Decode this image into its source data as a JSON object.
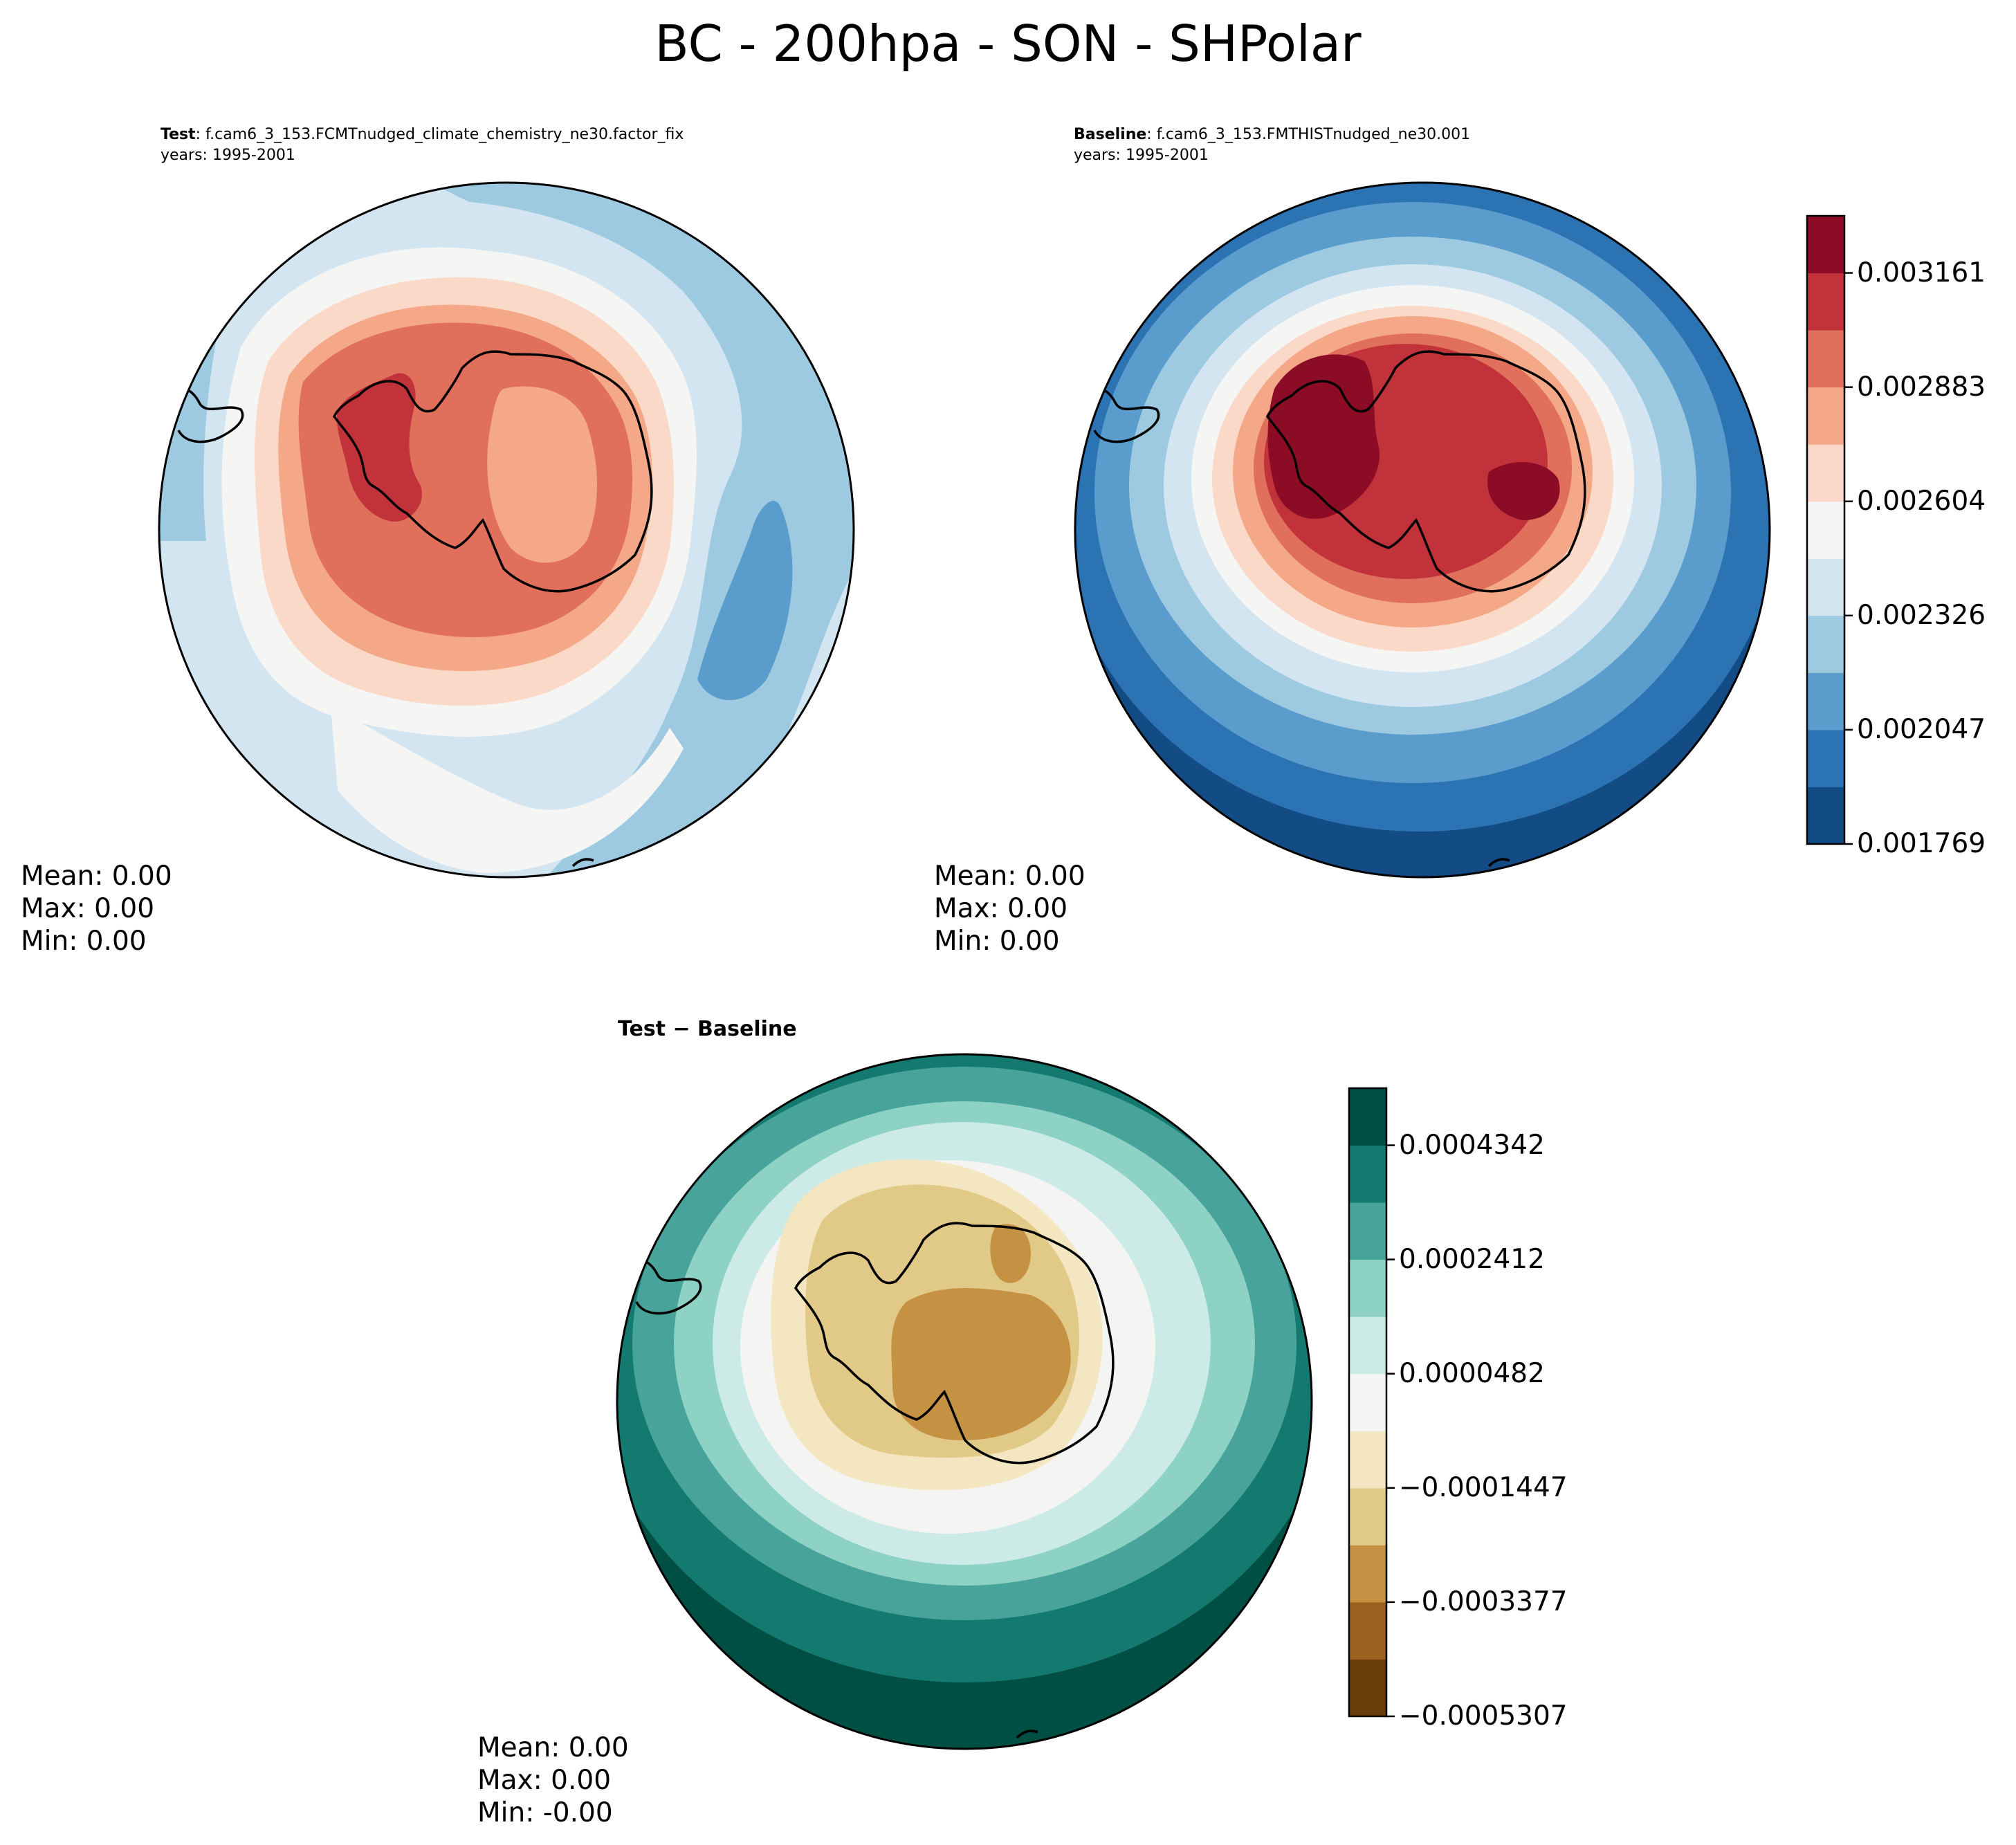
{
  "figure": {
    "title": "BC - 200hpa - SON - SHPolar"
  },
  "panels": {
    "test": {
      "label": "Test",
      "case": ": f.cam6_3_153.FCMTnudged_climate_chemistry_ne30.factor_fix",
      "years": "years: 1995-2001",
      "stats": {
        "mean": "Mean:  0.00",
        "max": "Max:  0.00",
        "min": "Min:  0.00"
      }
    },
    "baseline": {
      "label": "Baseline",
      "case": ": f.cam6_3_153.FMTHISTnudged_ne30.001",
      "years": "years: 1995-2001",
      "stats": {
        "mean": "Mean:  0.00",
        "max": "Max:  0.00",
        "min": "Min:  0.00"
      }
    },
    "diff": {
      "label": "Test − Baseline",
      "stats": {
        "mean": "Mean:  0.00",
        "max": "Max:  0.00",
        "min": "Min: -0.00"
      }
    }
  },
  "colorbars": {
    "main": {
      "ticks": [
        "0.003161",
        "0.002883",
        "0.002604",
        "0.002326",
        "0.002047",
        "0.001769"
      ],
      "colors_bottom_to_top": [
        "#134b84",
        "#2c73b4",
        "#5a9ccb",
        "#9dcae1",
        "#d3e5f1",
        "#f5f5f4",
        "#fbd9c8",
        "#f5a887",
        "#e0705b",
        "#c1323a",
        "#8c0c25"
      ]
    },
    "diff": {
      "ticks": [
        "0.0004342",
        "0.0002412",
        "0.0000482",
        "−0.0001447",
        "−0.0003377",
        "−0.0005307"
      ],
      "colors_bottom_to_top": [
        "#6b3d0b",
        "#9b5f1e",
        "#c59143",
        "#e1c987",
        "#f3e6c1",
        "#f4f4f2",
        "#cdebe6",
        "#8dd2c4",
        "#48a49a",
        "#147a70",
        "#004f44"
      ]
    }
  },
  "map_colors": {
    "test_levels": [
      "#d3e5f1",
      "#9dcae1",
      "#5a9ccb",
      "#f5f5f4",
      "#fbd9c8",
      "#f5a887",
      "#e0705b",
      "#c1323a"
    ],
    "baseline_levels": [
      "#134b84",
      "#2c73b4",
      "#5a9ccb",
      "#9dcae1",
      "#d3e5f1",
      "#f5f5f4",
      "#fbd9c8",
      "#f5a887",
      "#e0705b",
      "#c1323a",
      "#8c0c25"
    ],
    "diff_levels": [
      "#004f44",
      "#147a70",
      "#48a49a",
      "#8dd2c4",
      "#cdebe6",
      "#f4f4f2",
      "#f3e6c1",
      "#e1c987",
      "#c59143"
    ]
  }
}
